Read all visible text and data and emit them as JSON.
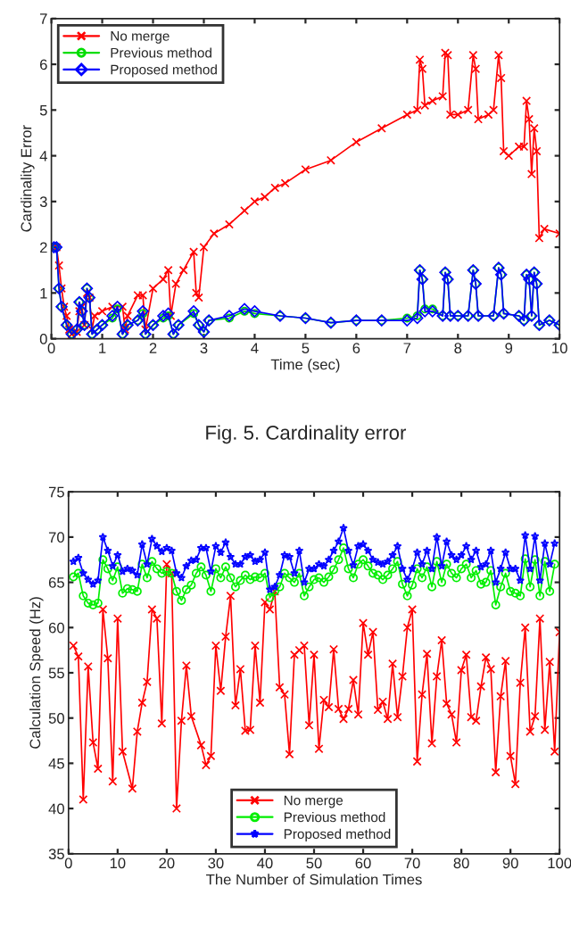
{
  "chart_data": [
    {
      "type": "line",
      "xlabel": "Time (sec)",
      "ylabel": "Cardinality Error",
      "xlim": [
        0,
        10
      ],
      "ylim": [
        0,
        7
      ],
      "xticks": [
        0,
        1,
        2,
        3,
        4,
        5,
        6,
        7,
        8,
        9,
        10
      ],
      "yticks": [
        0,
        1,
        2,
        3,
        4,
        5,
        6,
        7
      ],
      "grid": false,
      "legend": "top left",
      "annotations": [
        "Fig. 5. Cardinality error"
      ],
      "series": [
        {
          "name": "No merge",
          "color": "#ff0000",
          "marker": "cross",
          "x": [
            0.05,
            0.1,
            0.15,
            0.2,
            0.25,
            0.3,
            0.35,
            0.4,
            0.5,
            0.55,
            0.6,
            0.65,
            0.7,
            0.75,
            0.8,
            0.85,
            1.0,
            1.2,
            1.4,
            1.45,
            1.5,
            1.7,
            1.8,
            1.85,
            2.0,
            2.2,
            2.3,
            2.35,
            2.45,
            2.6,
            2.8,
            2.85,
            2.9,
            3.0,
            3.2,
            3.5,
            3.8,
            4.0,
            4.2,
            4.4,
            4.6,
            5.0,
            5.5,
            6.0,
            6.5,
            7.0,
            7.2,
            7.25,
            7.3,
            7.35,
            7.5,
            7.7,
            7.75,
            7.8,
            7.85,
            8.0,
            8.2,
            8.3,
            8.35,
            8.4,
            8.6,
            8.7,
            8.8,
            8.85,
            8.9,
            9.0,
            9.2,
            9.3,
            9.35,
            9.4,
            9.45,
            9.5,
            9.55,
            9.6,
            9.7,
            10.0
          ],
          "values": [
            2.0,
            2.0,
            1.6,
            1.1,
            0.7,
            0.5,
            0.2,
            0.1,
            0.15,
            0.6,
            0.7,
            0.3,
            1.0,
            0.9,
            0.2,
            0.5,
            0.6,
            0.7,
            0.7,
            0.2,
            0.5,
            0.95,
            0.95,
            0.2,
            1.1,
            1.3,
            1.5,
            0.5,
            1.2,
            1.5,
            1.9,
            1.0,
            0.9,
            2.0,
            2.3,
            2.5,
            2.8,
            3.0,
            3.1,
            3.3,
            3.4,
            3.7,
            3.9,
            4.3,
            4.6,
            4.9,
            5.0,
            6.1,
            5.9,
            5.1,
            5.2,
            5.3,
            6.25,
            6.2,
            4.9,
            4.9,
            5.0,
            6.2,
            5.9,
            4.8,
            4.9,
            5.0,
            6.2,
            5.7,
            4.1,
            4.0,
            4.2,
            4.2,
            5.2,
            4.8,
            3.6,
            4.6,
            4.1,
            2.2,
            2.4,
            2.3
          ]
        },
        {
          "name": "Previous method",
          "color": "#00dd00",
          "marker": "circle",
          "x": [
            0.05,
            0.1,
            0.15,
            0.2,
            0.3,
            0.4,
            0.5,
            0.55,
            0.6,
            0.65,
            0.7,
            0.75,
            0.8,
            0.9,
            1.0,
            1.2,
            1.3,
            1.4,
            1.5,
            1.7,
            1.8,
            1.85,
            2.0,
            2.2,
            2.3,
            2.4,
            2.5,
            2.8,
            2.9,
            3.0,
            3.1,
            3.5,
            3.8,
            4.0,
            4.5,
            5.0,
            5.5,
            6.0,
            6.5,
            7.0,
            7.2,
            7.25,
            7.3,
            7.35,
            7.5,
            7.7,
            7.75,
            7.8,
            7.85,
            8.0,
            8.2,
            8.3,
            8.35,
            8.4,
            8.7,
            8.8,
            8.85,
            8.9,
            9.2,
            9.3,
            9.35,
            9.4,
            9.45,
            9.5,
            9.55,
            9.6,
            9.8,
            10.0
          ],
          "values": [
            2.0,
            2.0,
            1.1,
            0.7,
            0.3,
            0.1,
            0.2,
            0.8,
            0.6,
            0.3,
            1.1,
            0.9,
            0.1,
            0.2,
            0.3,
            0.45,
            0.65,
            0.1,
            0.3,
            0.4,
            0.55,
            0.1,
            0.3,
            0.45,
            0.5,
            0.1,
            0.3,
            0.55,
            0.3,
            0.15,
            0.4,
            0.45,
            0.6,
            0.55,
            0.5,
            0.45,
            0.35,
            0.4,
            0.4,
            0.45,
            0.5,
            1.5,
            1.3,
            0.65,
            0.65,
            0.5,
            1.45,
            1.3,
            0.5,
            0.5,
            0.5,
            1.5,
            1.2,
            0.5,
            0.5,
            1.55,
            1.4,
            0.55,
            0.5,
            0.4,
            1.4,
            1.3,
            0.5,
            1.45,
            1.2,
            0.3,
            0.4,
            0.3
          ]
        },
        {
          "name": "Proposed method",
          "color": "#0000ff",
          "marker": "diamond",
          "x": [
            0.05,
            0.1,
            0.15,
            0.2,
            0.3,
            0.4,
            0.5,
            0.55,
            0.6,
            0.65,
            0.7,
            0.75,
            0.8,
            0.9,
            1.0,
            1.2,
            1.3,
            1.4,
            1.5,
            1.7,
            1.8,
            1.85,
            2.0,
            2.2,
            2.3,
            2.4,
            2.5,
            2.8,
            2.9,
            3.0,
            3.1,
            3.5,
            3.8,
            4.0,
            4.5,
            5.0,
            5.5,
            6.0,
            6.5,
            7.0,
            7.2,
            7.25,
            7.3,
            7.35,
            7.5,
            7.7,
            7.75,
            7.8,
            7.85,
            8.0,
            8.2,
            8.3,
            8.35,
            8.4,
            8.7,
            8.8,
            8.85,
            8.9,
            9.2,
            9.3,
            9.35,
            9.4,
            9.45,
            9.5,
            9.55,
            9.6,
            9.8,
            10.0
          ],
          "values": [
            2.0,
            2.0,
            1.1,
            0.7,
            0.3,
            0.1,
            0.2,
            0.8,
            0.6,
            0.3,
            1.1,
            0.9,
            0.1,
            0.2,
            0.3,
            0.5,
            0.7,
            0.1,
            0.3,
            0.4,
            0.6,
            0.1,
            0.3,
            0.5,
            0.55,
            0.1,
            0.3,
            0.6,
            0.3,
            0.15,
            0.4,
            0.5,
            0.65,
            0.6,
            0.5,
            0.45,
            0.35,
            0.4,
            0.4,
            0.4,
            0.45,
            1.5,
            1.3,
            0.6,
            0.6,
            0.5,
            1.45,
            1.3,
            0.5,
            0.5,
            0.5,
            1.5,
            1.2,
            0.5,
            0.5,
            1.55,
            1.4,
            0.55,
            0.5,
            0.4,
            1.4,
            1.3,
            0.5,
            1.45,
            1.2,
            0.3,
            0.4,
            0.3
          ]
        }
      ]
    },
    {
      "type": "line",
      "xlabel": "The Number of Simulation Times",
      "ylabel": "Calculation Speed (Hz)",
      "xlim": [
        0,
        100
      ],
      "ylim": [
        35,
        75
      ],
      "xticks": [
        0,
        10,
        20,
        30,
        40,
        50,
        60,
        70,
        80,
        90,
        100
      ],
      "yticks": [
        35,
        40,
        45,
        50,
        55,
        60,
        65,
        70,
        75
      ],
      "grid": false,
      "legend": "bottom",
      "series": [
        {
          "name": "No merge",
          "color": "#ff0000",
          "marker": "cross",
          "x": [
            1,
            2,
            3,
            4,
            5,
            6,
            7,
            8,
            9,
            10,
            11,
            13,
            14,
            15,
            16,
            17,
            18,
            19,
            20,
            21,
            22,
            23,
            24,
            25,
            27,
            28,
            29,
            30,
            31,
            32,
            33,
            34,
            35,
            36,
            37,
            38,
            39,
            40,
            41,
            42,
            43,
            44,
            45,
            46,
            47,
            48,
            49,
            50,
            51,
            52,
            53,
            54,
            55,
            56,
            57,
            58,
            59,
            60,
            61,
            62,
            63,
            64,
            65,
            66,
            67,
            68,
            69,
            70,
            71,
            72,
            73,
            74,
            75,
            76,
            77,
            78,
            79,
            80,
            81,
            82,
            83,
            84,
            85,
            86,
            87,
            88,
            89,
            90,
            91,
            92,
            93,
            94,
            95,
            96,
            97,
            98,
            99,
            100
          ],
          "values": [
            58,
            56.8,
            41,
            55.7,
            47.3,
            44.4,
            62,
            56.6,
            43,
            61,
            46.3,
            42.2,
            48.5,
            51.7,
            54,
            62,
            61,
            49.4,
            67,
            66,
            40,
            49.7,
            55.8,
            50.2,
            47,
            44.8,
            45.8,
            58,
            53,
            59,
            63.5,
            51.4,
            55.4,
            48.6,
            48.7,
            58,
            51.7,
            62.8,
            62,
            64,
            53.4,
            52.6,
            46,
            57,
            57.5,
            58,
            49.2,
            57,
            46.6,
            52,
            51.2,
            57.6,
            51,
            49.9,
            51,
            54.2,
            50.4,
            60.5,
            57,
            59.5,
            50.9,
            51.8,
            49.9,
            56,
            50.1,
            54.6,
            60,
            62,
            45.2,
            52.6,
            57.1,
            47.2,
            54.6,
            58.6,
            51.6,
            50.4,
            47.3,
            55.3,
            57,
            50.1,
            49.7,
            53.5,
            56.7,
            55.4,
            44,
            52.4,
            56.3,
            45.8,
            42.7,
            53.9,
            60,
            48.5,
            50.2,
            61,
            48.7,
            56.2,
            46.3,
            59.5
          ]
        },
        {
          "name": "Previous method",
          "color": "#00ee00",
          "marker": "circle",
          "x": [
            1,
            2,
            3,
            4,
            5,
            6,
            7,
            8,
            9,
            10,
            11,
            12,
            13,
            14,
            15,
            16,
            17,
            18,
            19,
            20,
            21,
            22,
            23,
            24,
            25,
            26,
            27,
            28,
            29,
            30,
            31,
            32,
            33,
            34,
            35,
            36,
            37,
            38,
            39,
            40,
            41,
            42,
            43,
            44,
            45,
            46,
            47,
            48,
            49,
            50,
            51,
            52,
            53,
            54,
            55,
            56,
            57,
            58,
            59,
            60,
            61,
            62,
            63,
            64,
            65,
            66,
            67,
            68,
            69,
            70,
            71,
            72,
            73,
            74,
            75,
            76,
            77,
            78,
            79,
            80,
            81,
            82,
            83,
            84,
            85,
            86,
            87,
            88,
            89,
            90,
            91,
            92,
            93,
            94,
            95,
            96,
            97,
            98,
            99
          ],
          "values": [
            65.6,
            66,
            63.5,
            62.7,
            62.5,
            62.7,
            67.5,
            66.5,
            65.2,
            66.7,
            63.8,
            64.3,
            64.2,
            64,
            67,
            65.5,
            67.3,
            66.5,
            66,
            66.2,
            66,
            64,
            63,
            64.2,
            64.7,
            66,
            66.7,
            65.8,
            64,
            66.5,
            65.5,
            66.7,
            65.5,
            64.5,
            65.2,
            65.8,
            65.3,
            65.6,
            65.5,
            66,
            63.3,
            64,
            64.5,
            66,
            65.5,
            65,
            66,
            63.5,
            64.5,
            65.3,
            65.5,
            65,
            65.6,
            66.4,
            67.5,
            68.8,
            66.5,
            65.5,
            67,
            67.5,
            66.8,
            66,
            65.8,
            65.3,
            65.8,
            66.5,
            67.3,
            64.8,
            63.5,
            64.7,
            66.5,
            65.5,
            66.7,
            64.5,
            67.3,
            65,
            67,
            66,
            65.5,
            66.5,
            67,
            65.5,
            66.3,
            64.8,
            65,
            66.3,
            62.5,
            64.5,
            66,
            64,
            63.8,
            63.5,
            67.6,
            64.5,
            67.5,
            63.5,
            67.3,
            64,
            67
          ]
        },
        {
          "name": "Proposed method",
          "color": "#0000ff",
          "marker": "star",
          "x": [
            1,
            2,
            3,
            4,
            5,
            6,
            7,
            8,
            9,
            10,
            11,
            12,
            13,
            14,
            15,
            16,
            17,
            18,
            19,
            20,
            21,
            22,
            23,
            24,
            25,
            26,
            27,
            28,
            29,
            30,
            31,
            32,
            33,
            34,
            35,
            36,
            37,
            38,
            39,
            40,
            41,
            42,
            43,
            44,
            45,
            46,
            47,
            48,
            49,
            50,
            51,
            52,
            53,
            54,
            55,
            56,
            57,
            58,
            59,
            60,
            61,
            62,
            63,
            64,
            65,
            66,
            67,
            68,
            69,
            70,
            71,
            72,
            73,
            74,
            75,
            76,
            77,
            78,
            79,
            80,
            81,
            82,
            83,
            84,
            85,
            86,
            87,
            88,
            89,
            90,
            91,
            92,
            93,
            94,
            95,
            96,
            97,
            98,
            99
          ],
          "values": [
            67.3,
            67.7,
            66,
            65.3,
            64.8,
            65.2,
            70,
            68.5,
            66.8,
            68,
            66.2,
            66.5,
            66.3,
            65.8,
            69.2,
            67,
            69.8,
            69,
            68.4,
            68.8,
            68.5,
            66,
            65.5,
            66.8,
            67.4,
            67.5,
            68.8,
            68.8,
            66.2,
            69,
            68.3,
            69.4,
            67.8,
            67,
            67,
            67.8,
            68,
            67.3,
            67.5,
            68.3,
            64.2,
            64.5,
            65.8,
            68,
            67.8,
            66,
            68.5,
            65,
            66.5,
            66.5,
            67,
            66.8,
            67.5,
            68.5,
            69.5,
            71,
            68.5,
            66.9,
            69,
            69.2,
            68.5,
            67.5,
            67.2,
            67,
            67.3,
            68,
            69,
            66.5,
            65.3,
            66.5,
            68.3,
            67,
            68.5,
            66.5,
            70,
            66.8,
            69.5,
            68,
            67.5,
            68,
            69,
            67.5,
            68.5,
            66.7,
            67,
            68.5,
            65,
            66.5,
            68.3,
            66.5,
            66.5,
            65.2,
            70.2,
            66.5,
            70.1,
            65.2,
            69.3,
            67,
            69.3
          ]
        }
      ]
    }
  ]
}
